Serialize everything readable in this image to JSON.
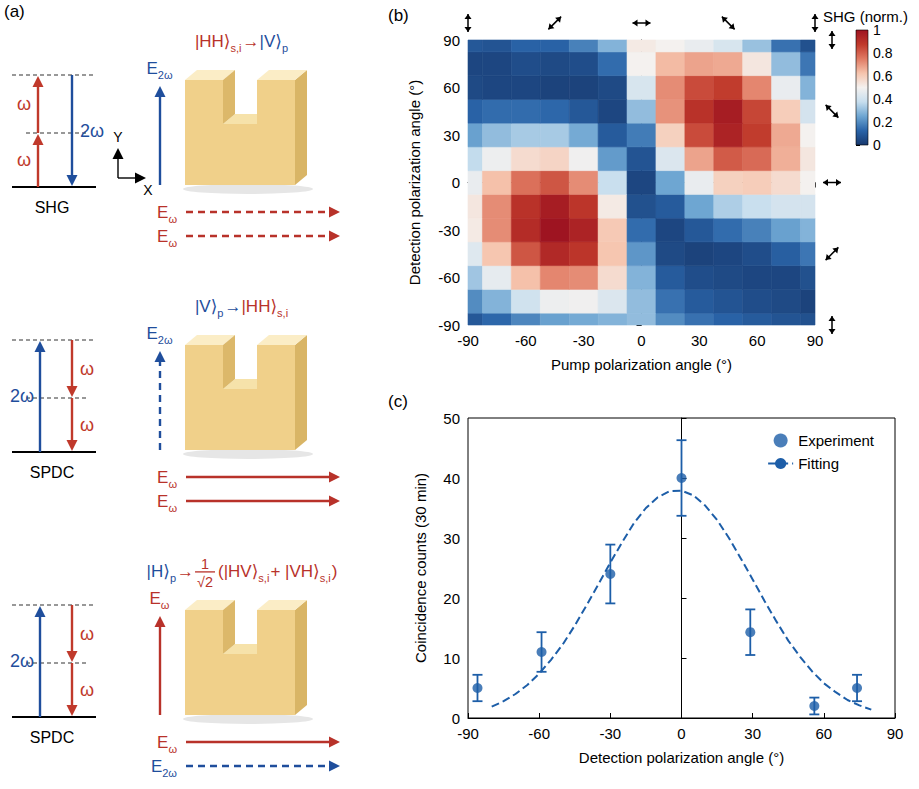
{
  "diagram": {
    "label": "(a)",
    "axes": {
      "x": "X",
      "y": "Y"
    },
    "rows": [
      {
        "process": "SHG",
        "absorbed": [
          "ω",
          "ω"
        ],
        "emitted": [
          "2ω"
        ],
        "equation": [
          {
            "text": "|HH⟩",
            "color": "#b8322a"
          },
          {
            "text": "s,i",
            "color": "#b8322a",
            "sub": true
          },
          {
            "text": " → ",
            "color": "#b8322a"
          },
          {
            "text": "|V⟩",
            "color": "#1f4e9c"
          },
          {
            "text": "p",
            "color": "#1f4e9c",
            "sub": true
          }
        ],
        "vertical_field": {
          "label": [
            {
              "text": "E"
            },
            {
              "text": "2ω",
              "sub": true
            }
          ],
          "color": "#1f4e9c",
          "line_style": "solid"
        },
        "horizontal_fields": [
          {
            "label": [
              {
                "text": "E"
              },
              {
                "text": "ω",
                "sub": true
              }
            ],
            "color": "#b8322a",
            "line_style": "dashed"
          },
          {
            "label": [
              {
                "text": "E"
              },
              {
                "text": "ω",
                "sub": true
              }
            ],
            "color": "#b8322a",
            "line_style": "dashed"
          }
        ]
      },
      {
        "process": "SPDC",
        "absorbed": [
          "2ω"
        ],
        "emitted": [
          "ω",
          "ω"
        ],
        "equation": [
          {
            "text": "|V⟩",
            "color": "#1f4e9c"
          },
          {
            "text": "p",
            "color": "#1f4e9c",
            "sub": true
          },
          {
            "text": " → ",
            "color": "#1f4e9c"
          },
          {
            "text": "|HH⟩",
            "color": "#b8322a"
          },
          {
            "text": "s,i",
            "color": "#b8322a",
            "sub": true
          }
        ],
        "vertical_field": {
          "label": [
            {
              "text": "E"
            },
            {
              "text": "2ω",
              "sub": true
            }
          ],
          "color": "#1f4e9c",
          "line_style": "dashed"
        },
        "horizontal_fields": [
          {
            "label": [
              {
                "text": "E"
              },
              {
                "text": "ω",
                "sub": true
              }
            ],
            "color": "#b8322a",
            "line_style": "solid"
          },
          {
            "label": [
              {
                "text": "E"
              },
              {
                "text": "ω",
                "sub": true
              }
            ],
            "color": "#b8322a",
            "line_style": "solid"
          }
        ]
      },
      {
        "process": "SPDC",
        "absorbed": [
          "2ω"
        ],
        "emitted": [
          "ω",
          "ω"
        ],
        "equation": [
          {
            "text": "|H⟩",
            "color": "#1f4e9c"
          },
          {
            "text": "p",
            "color": "#1f4e9c",
            "sub": true
          },
          {
            "text": " → ",
            "color": "#b8322a"
          },
          {
            "num": "1",
            "den": "√2",
            "color": "#b8322a"
          },
          {
            "text": "(|HV⟩",
            "color": "#b8322a"
          },
          {
            "text": "s,i",
            "color": "#b8322a",
            "sub": true
          },
          {
            "text": " + |VH⟩",
            "color": "#b8322a"
          },
          {
            "text": "s,i",
            "color": "#b8322a",
            "sub": true
          },
          {
            "text": ")",
            "color": "#b8322a"
          }
        ],
        "vertical_field": {
          "label": [
            {
              "text": "E"
            },
            {
              "text": "ω",
              "sub": true
            }
          ],
          "color": "#b8322a",
          "line_style": "solid"
        },
        "horizontal_fields": [
          {
            "label": [
              {
                "text": "E"
              },
              {
                "text": "ω",
                "sub": true
              }
            ],
            "color": "#b8322a",
            "line_style": "solid"
          },
          {
            "label": [
              {
                "text": "E"
              },
              {
                "text": "2ω",
                "sub": true
              }
            ],
            "color": "#1f4e9c",
            "line_style": "dashed"
          }
        ]
      }
    ]
  },
  "chart_data": [
    {
      "type": "heatmap",
      "panel": "(b)",
      "x_label": "Pump polarization angle (°)",
      "y_label": "Detection polarization angle (°)",
      "x": [
        -90,
        -75,
        -60,
        -45,
        -30,
        -15,
        0,
        15,
        30,
        45,
        60,
        75,
        90
      ],
      "y": [
        -90,
        -75,
        -60,
        -45,
        -30,
        -15,
        0,
        15,
        30,
        45,
        60,
        75,
        90
      ],
      "values": [
        [
          0.09,
          0.13,
          0.19,
          0.24,
          0.26,
          0.28,
          0.3,
          0.2,
          0.15,
          0.12,
          0.1,
          0.08,
          0.07
        ],
        [
          0.2,
          0.28,
          0.4,
          0.48,
          0.49,
          0.43,
          0.3,
          0.15,
          0.1,
          0.08,
          0.06,
          0.05,
          0.03
        ],
        [
          0.32,
          0.46,
          0.63,
          0.73,
          0.72,
          0.56,
          0.28,
          0.1,
          0.06,
          0.05,
          0.04,
          0.04,
          0.07
        ],
        [
          0.44,
          0.62,
          0.82,
          0.93,
          0.89,
          0.62,
          0.22,
          0.05,
          0.03,
          0.04,
          0.06,
          0.11,
          0.16
        ],
        [
          0.52,
          0.72,
          0.92,
          1.0,
          0.95,
          0.61,
          0.14,
          0.04,
          0.09,
          0.14,
          0.18,
          0.24,
          0.28
        ],
        [
          0.53,
          0.72,
          0.9,
          0.97,
          0.89,
          0.52,
          0.07,
          0.1,
          0.25,
          0.34,
          0.38,
          0.41,
          0.41
        ],
        [
          0.47,
          0.63,
          0.77,
          0.82,
          0.72,
          0.38,
          0.04,
          0.25,
          0.47,
          0.59,
          0.6,
          0.56,
          0.5
        ],
        [
          0.37,
          0.48,
          0.56,
          0.58,
          0.49,
          0.23,
          0.08,
          0.43,
          0.68,
          0.81,
          0.78,
          0.66,
          0.53
        ],
        [
          0.24,
          0.3,
          0.33,
          0.33,
          0.26,
          0.1,
          0.17,
          0.59,
          0.84,
          0.95,
          0.87,
          0.67,
          0.5
        ],
        [
          0.12,
          0.14,
          0.14,
          0.13,
          0.09,
          0.04,
          0.3,
          0.71,
          0.9,
          0.97,
          0.85,
          0.6,
          0.41
        ],
        [
          0.05,
          0.04,
          0.04,
          0.03,
          0.03,
          0.05,
          0.42,
          0.72,
          0.84,
          0.87,
          0.73,
          0.47,
          0.28
        ],
        [
          0.04,
          0.04,
          0.06,
          0.05,
          0.06,
          0.14,
          0.5,
          0.64,
          0.68,
          0.67,
          0.53,
          0.3,
          0.16
        ],
        [
          0.09,
          0.08,
          0.12,
          0.12,
          0.18,
          0.28,
          0.52,
          0.5,
          0.47,
          0.42,
          0.31,
          0.15,
          0.07
        ]
      ],
      "colorbar_label": "SHG (norm.)",
      "colorbar_range": [
        0,
        1
      ],
      "colorbar_ticks": [
        0,
        0.2,
        0.4,
        0.6,
        0.8,
        1
      ],
      "xlim": [
        -90,
        90
      ],
      "xticks": [
        -90,
        -60,
        -30,
        0,
        30,
        60,
        90
      ],
      "ylim": [
        -90,
        90
      ],
      "yticks": [
        -90,
        -60,
        -30,
        0,
        30,
        60,
        90
      ]
    },
    {
      "type": "scatter",
      "panel": "(c)",
      "x_label": "Detection polarization angle (°)",
      "y_label": "Coincidence counts (30 min)",
      "x": [
        -86,
        -59,
        -30,
        0,
        29,
        56,
        74
      ],
      "series": [
        {
          "name": "Experiment",
          "type": "scatter",
          "marker": "circle",
          "color": "#1d5ea8",
          "values": [
            5,
            11,
            24,
            40,
            14.3,
            2,
            5
          ],
          "errors": [
            2.2,
            3.3,
            4.9,
            6.3,
            3.8,
            1.4,
            2.2
          ]
        },
        {
          "name": "Fitting",
          "type": "line",
          "line_style": "dashed",
          "color": "#1d5ea8",
          "x": [
            -80,
            -75,
            -70,
            -65,
            -60,
            -55,
            -50,
            -45,
            -40,
            -35,
            -30,
            -25,
            -20,
            -15,
            -10,
            -5,
            0,
            5,
            10,
            15,
            20,
            25,
            30,
            35,
            40,
            45,
            50,
            55,
            60,
            65,
            70,
            75,
            80
          ],
          "values": [
            1.9,
            2.8,
            4.0,
            5.5,
            7.4,
            9.7,
            12.3,
            15.4,
            18.8,
            22.3,
            25.9,
            29.3,
            32.5,
            35.0,
            36.8,
            37.8,
            37.9,
            37.1,
            35.4,
            33.0,
            30.0,
            26.6,
            23.1,
            19.5,
            16.1,
            12.9,
            10.2,
            7.8,
            5.8,
            4.3,
            3.0,
            2.1,
            1.4
          ]
        }
      ],
      "legend": "upper right",
      "xlim": [
        -90,
        90
      ],
      "xticks": [
        -90,
        -60,
        -30,
        0,
        30,
        60,
        90
      ],
      "ylim": [
        0,
        50
      ],
      "yticks": [
        0,
        10,
        20,
        30,
        40,
        50
      ]
    }
  ]
}
